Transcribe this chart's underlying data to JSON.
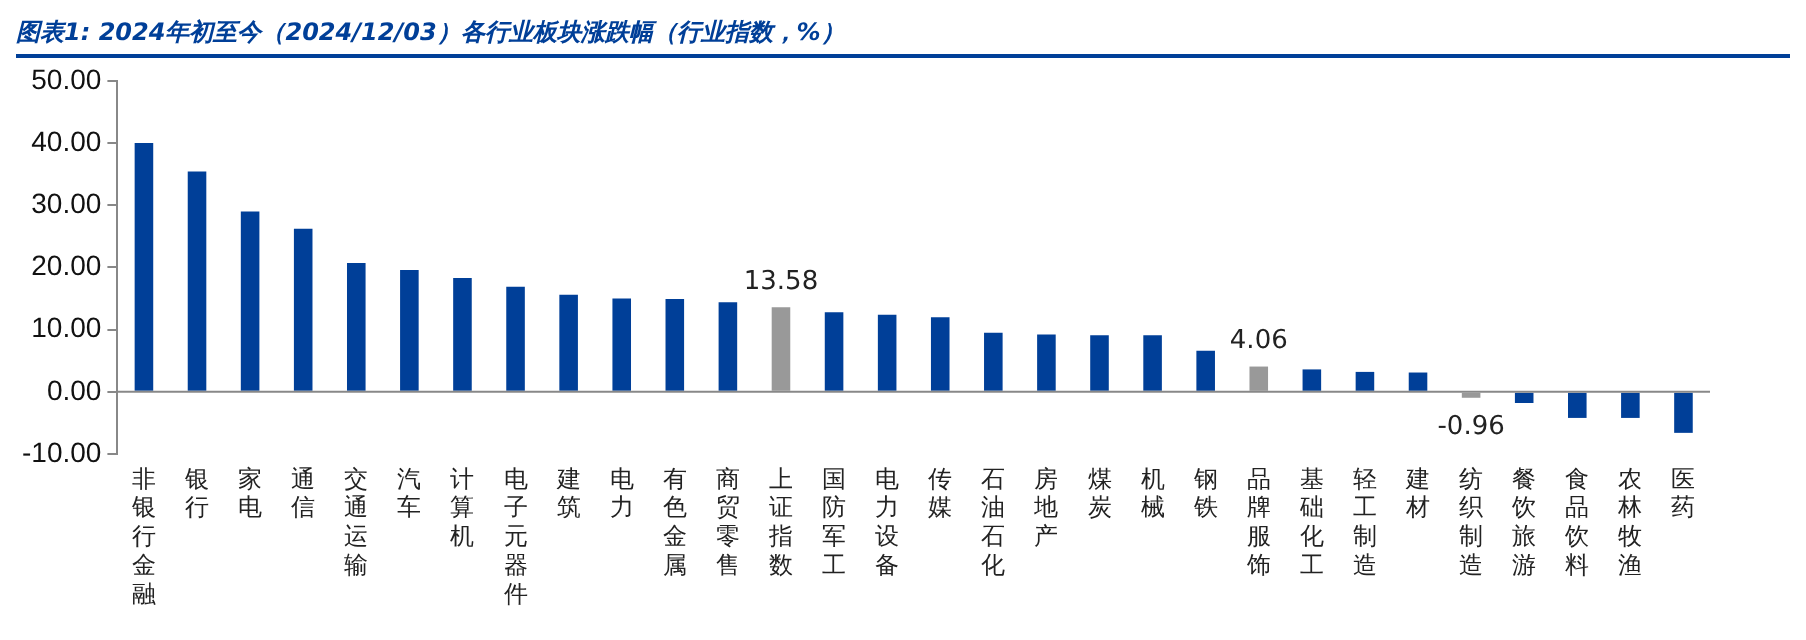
{
  "chart_data": {
    "type": "bar",
    "title": "图表1:  2024年初至今（2024/12/03）各行业板块涨跌幅（行业指数，%）",
    "categories": [
      "非银行金融",
      "银行",
      "家电",
      "通信",
      "交通运输",
      "汽车",
      "计算机",
      "电子元器件",
      "建筑",
      "电力",
      "有色金属",
      "商贸零售",
      "上证指数",
      "国防军工",
      "电力设备",
      "传媒",
      "石油石化",
      "房地产",
      "煤炭",
      "机械",
      "钢铁",
      "品牌服饰",
      "基础化工",
      "轻工制造",
      "建材",
      "纺织制造",
      "餐饮旅游",
      "食品饮料",
      "农林牧渔",
      "医药"
    ],
    "values": [
      40.0,
      35.4,
      29.0,
      26.2,
      20.7,
      19.6,
      18.3,
      16.9,
      15.6,
      15.0,
      14.9,
      14.4,
      13.58,
      12.8,
      12.4,
      12.0,
      9.5,
      9.2,
      9.1,
      9.1,
      6.6,
      4.06,
      3.6,
      3.2,
      3.1,
      -0.96,
      -1.8,
      -4.2,
      -4.2,
      -6.6
    ],
    "colors": [
      "#003f98",
      "#003f98",
      "#003f98",
      "#003f98",
      "#003f98",
      "#003f98",
      "#003f98",
      "#003f98",
      "#003f98",
      "#003f98",
      "#003f98",
      "#003f98",
      "#999999",
      "#003f98",
      "#003f98",
      "#003f98",
      "#003f98",
      "#003f98",
      "#003f98",
      "#003f98",
      "#003f98",
      "#999999",
      "#003f98",
      "#003f98",
      "#003f98",
      "#999999",
      "#003f98",
      "#003f98",
      "#003f98",
      "#003f98"
    ],
    "value_labels": [
      null,
      null,
      null,
      null,
      null,
      null,
      null,
      null,
      null,
      null,
      null,
      null,
      "13.58",
      null,
      null,
      null,
      null,
      null,
      null,
      null,
      null,
      "4.06",
      null,
      null,
      null,
      "-0.96",
      null,
      null,
      null,
      null
    ],
    "ylim": [
      -10,
      50
    ],
    "yticks": [
      {
        "value": -10,
        "label": "-10.00"
      },
      {
        "value": 0,
        "label": "0.00"
      },
      {
        "value": 10,
        "label": "10.00"
      },
      {
        "value": 20,
        "label": "20.00"
      },
      {
        "value": 30,
        "label": "30.00"
      },
      {
        "value": 40,
        "label": "40.00"
      },
      {
        "value": 50,
        "label": "50.00"
      }
    ],
    "ref_lines": [
      {
        "axis": "y",
        "value": 0,
        "color": "#888888"
      }
    ],
    "grid": false,
    "legend": false
  }
}
